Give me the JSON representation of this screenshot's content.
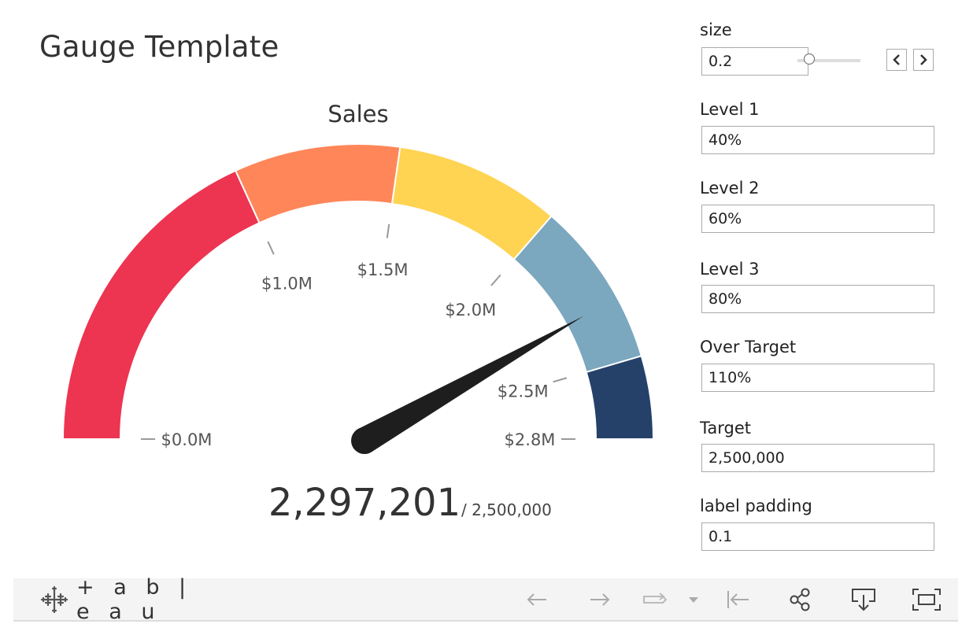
{
  "header": {
    "title": "Gauge Template"
  },
  "chart_data": {
    "type": "gauge",
    "title": "Sales",
    "value": 2297201,
    "value_label": "2,297,201",
    "target_label": "/ 2,500,000",
    "target": 2500000,
    "max": 2750000,
    "bands": [
      {
        "from": 0,
        "to": 1000000,
        "color": "#ED3451"
      },
      {
        "from": 1000000,
        "to": 1500000,
        "color": "#FF8659"
      },
      {
        "from": 1500000,
        "to": 2000000,
        "color": "#FFD453"
      },
      {
        "from": 2000000,
        "to": 2500000,
        "color": "#7BA7BF"
      },
      {
        "from": 2500000,
        "to": 2750000,
        "color": "#25416A"
      }
    ],
    "ticks": [
      {
        "value": 0,
        "label": "$0.0M"
      },
      {
        "value": 1000000,
        "label": "$1.0M"
      },
      {
        "value": 1500000,
        "label": "$1.5M"
      },
      {
        "value": 2000000,
        "label": "$2.0M"
      },
      {
        "value": 2500000,
        "label": "$2.5M"
      },
      {
        "value": 2750000,
        "label": "$2.8M"
      }
    ],
    "needle_color": "#1e1e1e"
  },
  "params": {
    "size": {
      "label": "size",
      "value": "0.2",
      "slider_value": 0.2
    },
    "level1": {
      "label": "Level 1",
      "value": "40%"
    },
    "level2": {
      "label": "Level 2",
      "value": "60%"
    },
    "level3": {
      "label": "Level 3",
      "value": "80%"
    },
    "over_target": {
      "label": "Over Target",
      "value": "110%"
    },
    "target": {
      "label": "Target",
      "value": "2,500,000"
    },
    "label_padding": {
      "label": "label padding",
      "value": "0.1"
    }
  },
  "toolbar": {
    "brand": "+ a b | e a u",
    "icons": [
      "tableau-logo-icon",
      "undo-icon",
      "redo-icon",
      "revert-icon",
      "dropdown-icon",
      "reset-icon",
      "share-icon",
      "download-icon",
      "fullscreen-icon"
    ]
  }
}
